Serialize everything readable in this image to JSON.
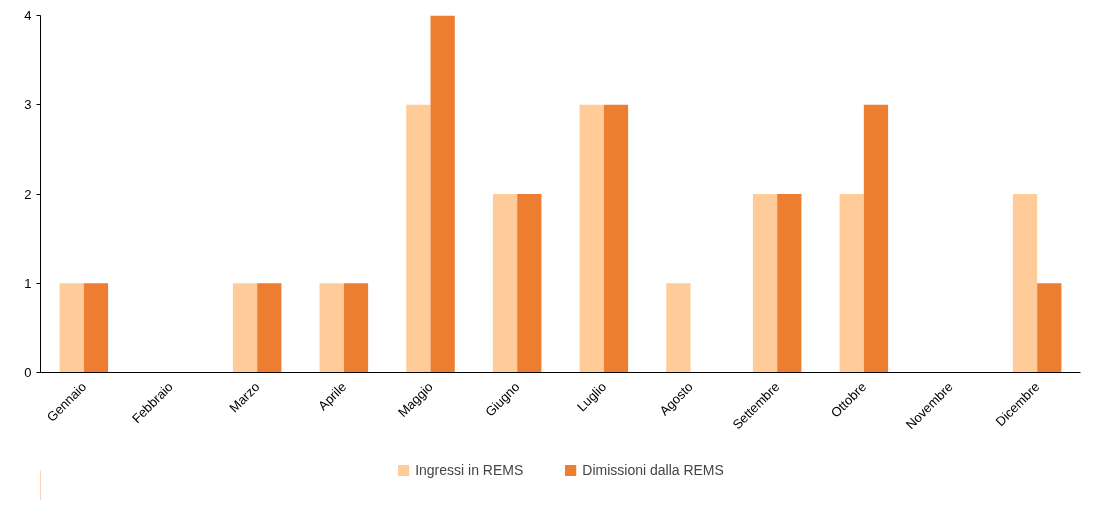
{
  "chart_data": {
    "type": "bar",
    "categories": [
      "Gennaio",
      "Febbraio",
      "Marzo",
      "Aprile",
      "Maggio",
      "Giugno",
      "Luglio",
      "Agosto",
      "Settembre",
      "Ottobre",
      "Novembre",
      "Dicembre"
    ],
    "series": [
      {
        "name": "Ingressi in REMS",
        "color": "#ffcc99",
        "values": [
          1,
          0,
          1,
          1,
          3,
          2,
          3,
          1,
          2,
          2,
          0,
          2
        ]
      },
      {
        "name": "Dimissioni dalla REMS",
        "color": "#ed7d31",
        "values": [
          1,
          0,
          1,
          1,
          4,
          2,
          3,
          0,
          2,
          3,
          0,
          1
        ]
      }
    ],
    "ylim": [
      0,
      4
    ],
    "yticks": [
      0,
      1,
      2,
      3,
      4
    ],
    "grid": false,
    "legend": "bottom"
  }
}
